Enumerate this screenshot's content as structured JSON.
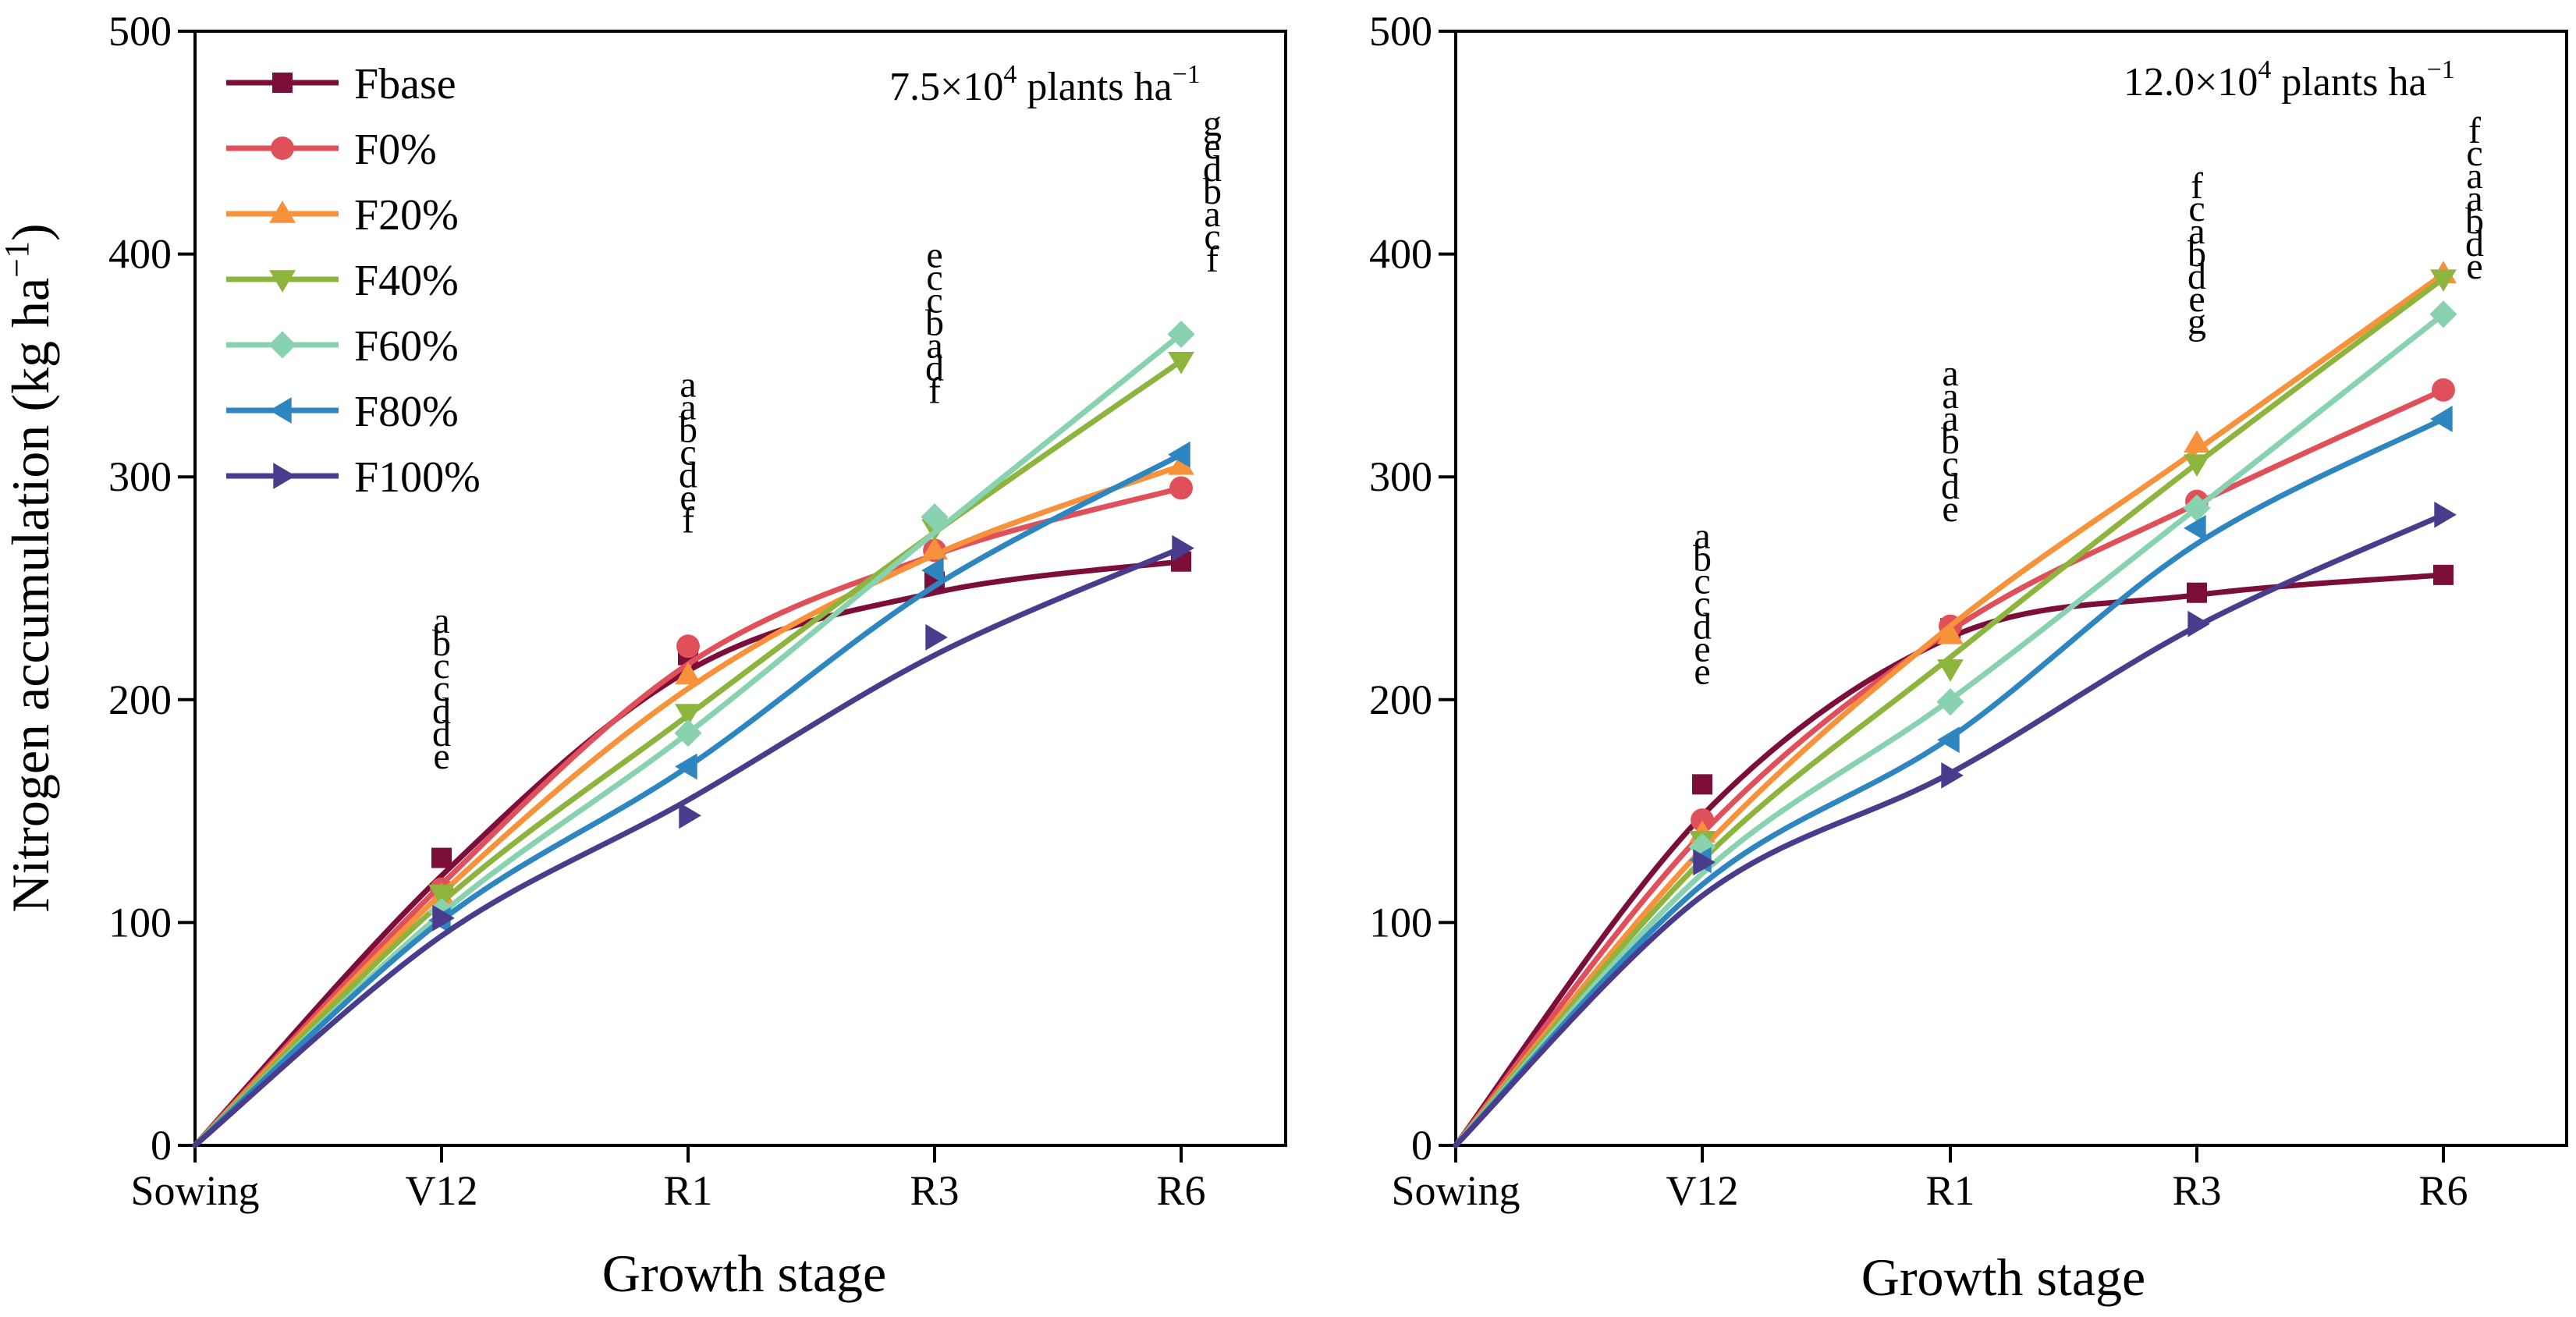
{
  "chart_data": [
    {
      "type": "line",
      "title": "",
      "density_label": {
        "base": "7.5×10",
        "sup": "4",
        "unit": " plants ha",
        "unit_sup": "−1"
      },
      "xlabel": "Growth stage",
      "ylabel": "Nitrogen accumulation (kg ha",
      "ylabel_sup": "−1",
      "ylabel_close": ")",
      "categories": [
        "Sowing",
        "V12",
        "R1",
        "R3",
        "R6"
      ],
      "ylim": [
        0,
        500
      ],
      "yticks": [
        0,
        100,
        200,
        300,
        400,
        500
      ],
      "series": [
        {
          "name": "Fbase",
          "color": "#7B0F3A",
          "marker": "square",
          "values": [
            0,
            129,
            220,
            253,
            262
          ],
          "fit": [
            0,
            121,
            213,
            248,
            262
          ]
        },
        {
          "name": "F0%",
          "color": "#E0505A",
          "marker": "circle",
          "values": [
            0,
            115,
            224,
            267,
            295
          ],
          "fit": [
            0,
            117,
            216,
            265,
            295
          ]
        },
        {
          "name": "F20%",
          "color": "#F7923A",
          "marker": "triangle-up",
          "values": [
            0,
            112,
            211,
            267,
            305
          ],
          "fit": [
            0,
            113,
            205,
            265,
            305
          ]
        },
        {
          "name": "F40%",
          "color": "#8DB43D",
          "marker": "triangle-down",
          "values": [
            0,
            113,
            194,
            277,
            352
          ],
          "fit": [
            0,
            109,
            193,
            275,
            352
          ]
        },
        {
          "name": "F60%",
          "color": "#88D2B0",
          "marker": "diamond",
          "values": [
            0,
            105,
            185,
            282,
            364
          ],
          "fit": [
            0,
            104,
            185,
            275,
            364
          ]
        },
        {
          "name": "F80%",
          "color": "#2E86C1",
          "marker": "triangle-left",
          "values": [
            0,
            101,
            170,
            258,
            310
          ],
          "fit": [
            0,
            101,
            170,
            251,
            310
          ]
        },
        {
          "name": "F100%",
          "color": "#4A3C8C",
          "marker": "triangle-right",
          "values": [
            0,
            102,
            148,
            228,
            268
          ],
          "fit": [
            0,
            94,
            155,
            220,
            268
          ]
        }
      ],
      "significance_letters": [
        {
          "stage": "V12",
          "letters": [
            "a",
            "b",
            "c",
            "c",
            "d",
            "d",
            "e"
          ],
          "top_value": 230
        },
        {
          "stage": "R1",
          "letters": [
            "a",
            "a",
            "b",
            "c",
            "d",
            "e",
            "f"
          ],
          "top_value": 336
        },
        {
          "stage": "R3",
          "letters": [
            "e",
            "c",
            "c",
            "b",
            "a",
            "d",
            "f"
          ],
          "top_value": 394
        },
        {
          "stage": "R6",
          "letters": [
            "g",
            "e",
            "d",
            "b",
            "a",
            "c",
            "f"
          ],
          "top_value": 453
        }
      ]
    },
    {
      "type": "line",
      "title": "",
      "density_label": {
        "base": "12.0×10",
        "sup": "4",
        "unit": " plants ha",
        "unit_sup": "−1"
      },
      "xlabel": "Growth stage",
      "categories": [
        "Sowing",
        "V12",
        "R1",
        "R3",
        "R6"
      ],
      "ylim": [
        0,
        500
      ],
      "yticks": [
        0,
        100,
        200,
        300,
        400,
        500
      ],
      "series": [
        {
          "name": "Fbase",
          "color": "#7B0F3A",
          "marker": "square",
          "values": [
            0,
            162,
            232,
            248,
            256
          ],
          "fit": [
            0,
            148,
            228,
            247,
            256
          ]
        },
        {
          "name": "F0%",
          "color": "#E0505A",
          "marker": "circle",
          "values": [
            0,
            146,
            233,
            289,
            339
          ],
          "fit": [
            0,
            140,
            231,
            288,
            339
          ]
        },
        {
          "name": "F20%",
          "color": "#F7923A",
          "marker": "triangle-up",
          "values": [
            0,
            140,
            229,
            315,
            391
          ],
          "fit": [
            0,
            133,
            233,
            312,
            391
          ]
        },
        {
          "name": "F40%",
          "color": "#8DB43D",
          "marker": "triangle-down",
          "values": [
            0,
            137,
            214,
            306,
            389
          ],
          "fit": [
            0,
            128,
            219,
            306,
            389
          ]
        },
        {
          "name": "F60%",
          "color": "#88D2B0",
          "marker": "diamond",
          "values": [
            0,
            134,
            199,
            286,
            373
          ],
          "fit": [
            0,
            122,
            200,
            286,
            373
          ]
        },
        {
          "name": "F80%",
          "color": "#2E86C1",
          "marker": "triangle-left",
          "values": [
            0,
            128,
            182,
            277,
            326
          ],
          "fit": [
            0,
            117,
            183,
            270,
            326
          ]
        },
        {
          "name": "F100%",
          "color": "#4A3C8C",
          "marker": "triangle-right",
          "values": [
            0,
            127,
            166,
            234,
            283
          ],
          "fit": [
            0,
            112,
            167,
            233,
            283
          ]
        }
      ],
      "significance_letters": [
        {
          "stage": "V12",
          "letters": [
            "a",
            "b",
            "c",
            "c",
            "d",
            "e",
            "e"
          ],
          "top_value": 268
        },
        {
          "stage": "R1",
          "letters": [
            "a",
            "a",
            "a",
            "b",
            "c",
            "d",
            "e"
          ],
          "top_value": 341
        },
        {
          "stage": "R3",
          "letters": [
            "f",
            "c",
            "a",
            "b",
            "d",
            "e",
            "g"
          ],
          "top_value": 425
        },
        {
          "stage": "R6",
          "letters": [
            "f",
            "c",
            "a",
            "a",
            "b",
            "d",
            "e"
          ],
          "top_value": 450
        }
      ]
    }
  ]
}
